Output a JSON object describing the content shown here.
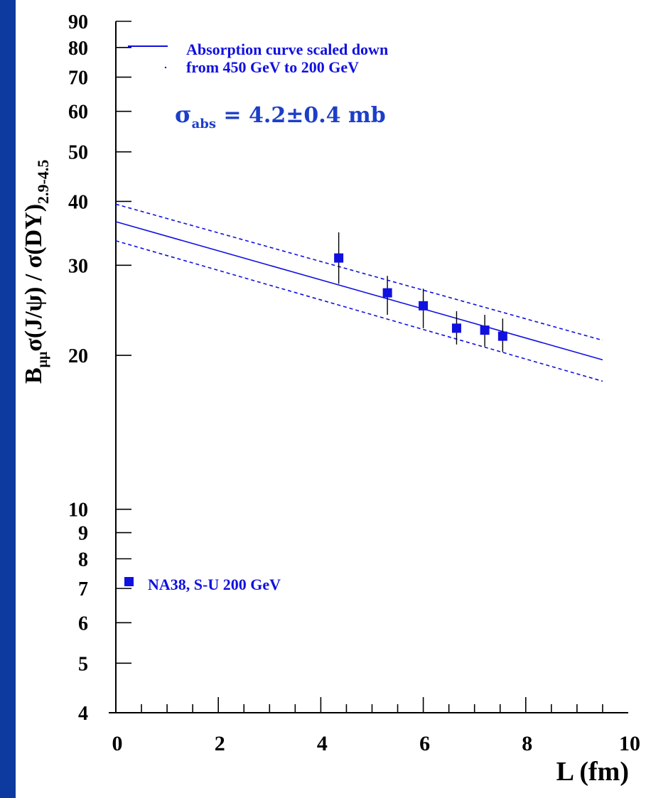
{
  "chart_data": {
    "type": "scatter",
    "xlabel": "L (fm)",
    "x_ticks": [
      "0",
      "2",
      "4",
      "6",
      "8",
      "10"
    ],
    "y_ticks": [
      "4",
      "5",
      "6",
      "7",
      "8",
      "9",
      "10",
      "20",
      "30",
      "40",
      "50",
      "60",
      "70",
      "80",
      "90"
    ],
    "xlim": [
      0,
      10
    ],
    "ylim": [
      4,
      90
    ],
    "y_scale": "log",
    "grid": false,
    "legend_position": "top-left",
    "series": [
      {
        "name": "NA38, S-U 200 GeV",
        "kind": "points",
        "color": "#1010e0",
        "marker": "square",
        "points": [
          {
            "x": 4.35,
            "y": 31.0,
            "y_low": 27.6,
            "y_high": 34.8
          },
          {
            "x": 5.3,
            "y": 26.5,
            "y_low": 24.0,
            "y_high": 28.6
          },
          {
            "x": 6.0,
            "y": 25.0,
            "y_low": 22.6,
            "y_high": 27.0
          },
          {
            "x": 6.65,
            "y": 22.6,
            "y_low": 21.0,
            "y_high": 24.4
          },
          {
            "x": 7.2,
            "y": 22.4,
            "y_low": 20.8,
            "y_high": 24.0
          },
          {
            "x": 7.55,
            "y": 21.8,
            "y_low": 20.3,
            "y_high": 23.6
          }
        ]
      },
      {
        "name": "Absorption curve scaled down from 450 GeV to 200 GeV",
        "kind": "line",
        "color": "#1010e0",
        "x": [
          0,
          9.5
        ],
        "y": [
          36.5,
          19.6
        ]
      },
      {
        "kind": "band-upper",
        "color": "#1010e0",
        "style": "dashed",
        "x": [
          0,
          9.5
        ],
        "y": [
          39.5,
          21.4
        ]
      },
      {
        "kind": "band-lower",
        "color": "#1010e0",
        "style": "dashed",
        "x": [
          0,
          9.5
        ],
        "y": [
          33.5,
          17.8
        ]
      }
    ],
    "legend": {
      "line_label_1": "Absorption curve scaled down",
      "line_label_2": "from 450 GeV to 200 GeV",
      "points_label": "NA38, S-U 200 GeV"
    },
    "annotation": {
      "sigma": "σ",
      "subscript": "abs",
      "value": " = 4.2±0.4 mb",
      "color": "#1c3fc8"
    },
    "ylabel_parts": {
      "B": "B",
      "mumu": "μμ",
      "main": "σ(J/ψ) / σ(DY)",
      "range": "2.9-4.5"
    }
  },
  "colors": {
    "frame": "#0a2a7a",
    "left_bar": "#0d3a9e",
    "data": "#1010e0",
    "annotation": "#1c3fc8"
  }
}
